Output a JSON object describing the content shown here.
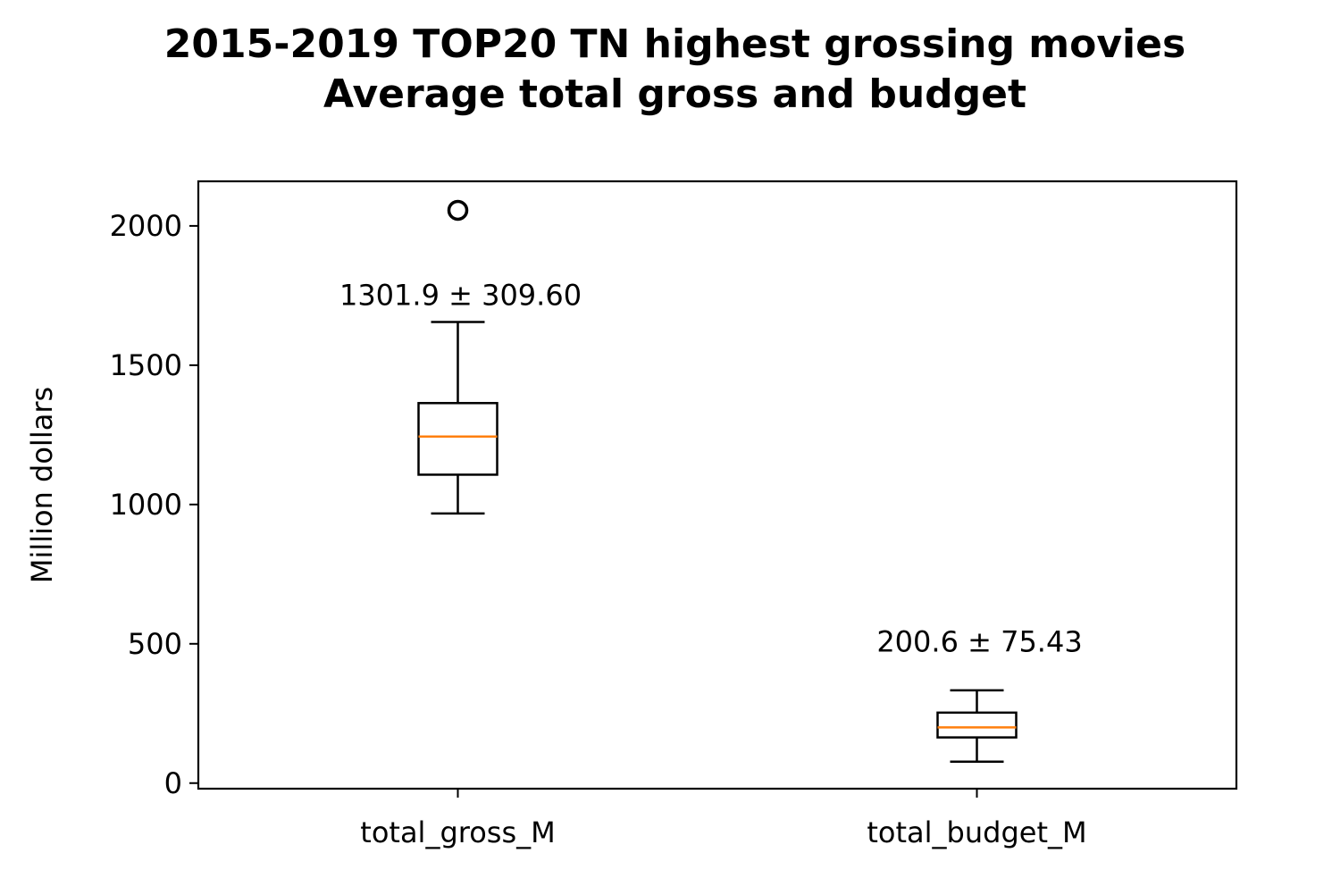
{
  "chart_data": {
    "type": "box",
    "title_line1": "2015-2019 TOP20 TN highest grossing movies",
    "title_line2": "Average total gross and budget",
    "xlabel": "",
    "ylabel": "Million dollars",
    "ylim": [
      -20,
      2160
    ],
    "yticks": [
      0,
      500,
      1000,
      1500,
      2000
    ],
    "grid": false,
    "colors": {
      "box": "#000000",
      "median": "#ff7f0e"
    },
    "categories": [
      "total_gross_M",
      "total_budget_M"
    ],
    "boxes": [
      {
        "label": "total_gross_M",
        "whisker_low": 968,
        "q1": 1107,
        "median": 1244,
        "q3": 1364,
        "whisker_high": 1655,
        "outliers": [
          2056
        ],
        "annotation": "1301.9 ± 309.60",
        "annotation_y": 1755
      },
      {
        "label": "total_budget_M",
        "whisker_low": 77,
        "q1": 164,
        "median": 200,
        "q3": 253,
        "whisker_high": 333,
        "outliers": [],
        "annotation": "200.6 ± 75.43",
        "annotation_y": 510
      }
    ]
  }
}
